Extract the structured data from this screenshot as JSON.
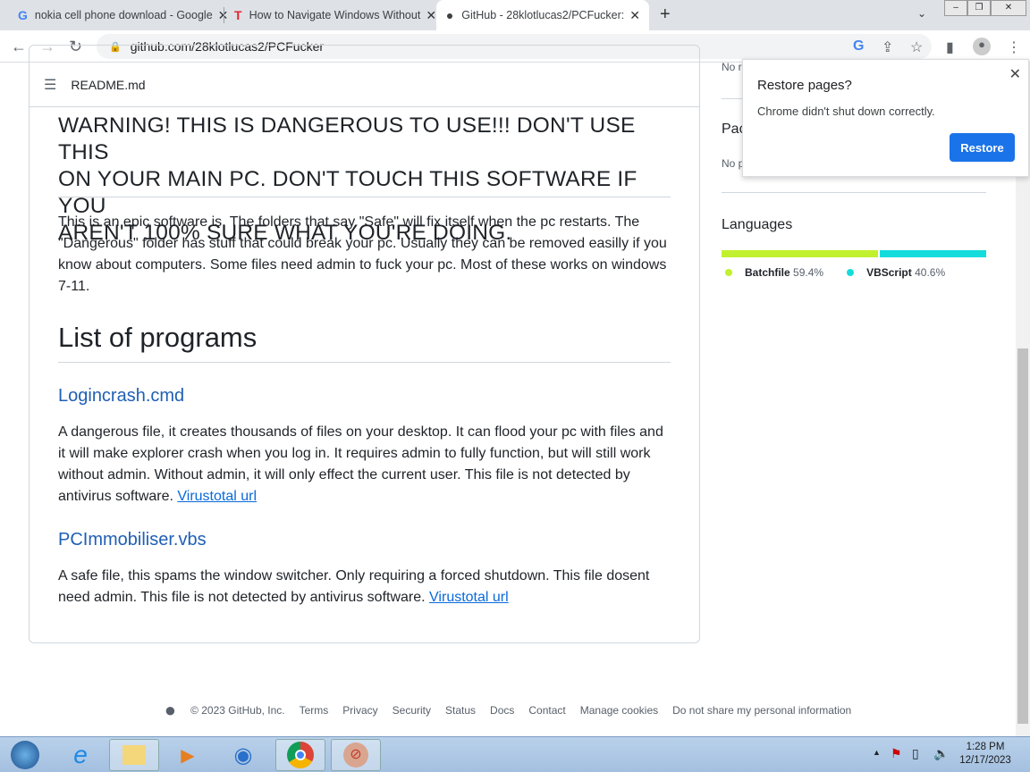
{
  "browser": {
    "tabs": [
      {
        "title": "nokia cell phone download - Google",
        "icon": "google-icon"
      },
      {
        "title": "How to Navigate Windows Without",
        "icon": "t-icon"
      },
      {
        "title": "GitHub - 28klotlucas2/PCFucker:",
        "icon": "github-icon"
      }
    ],
    "url": "github.com/28klotlucas2/PCFucker"
  },
  "readme": {
    "filename": "README.md",
    "warning": [
      "WARNING! THIS IS DANGEROUS TO USE!!! DON'T USE THIS",
      "ON YOUR MAIN PC. DON'T TOUCH THIS SOFTWARE IF YOU",
      "AREN'T 100% SURE WHAT YOU'RE DOING."
    ],
    "intro": "This is an epic software is. The folders that say \"Safe\" will fix itself when the pc restarts. The \"Dangerous\" folder has stuff that could break your pc. Usually they can be removed easilly if you know about computers. Some files need admin to fuck your pc. Most of these works on windows 7-11.",
    "list_title": "List of programs",
    "programs": [
      {
        "name": "Logincrash.cmd",
        "desc": "A dangerous file, it creates thousands of files on your desktop. It can flood your pc with files and it will make explorer crash when you log in. It requires admin to fully function, but will still work without admin. Without admin, it will only effect the current user. This file is not detected by antivirus software.",
        "link": "Virustotal url"
      },
      {
        "name": "PCImmobiliser.vbs",
        "desc": "A safe file, this spams the window switcher. Only requiring a forced shutdown. This file dosent need admin. This file is not detected by antivirus software.",
        "link": "Virustotal url"
      }
    ]
  },
  "sidebar": {
    "no_r": "No r",
    "packages_partial": "Pac",
    "no_p": "No p",
    "languages_title": "Languages",
    "languages": [
      {
        "name": "Batchfile",
        "pct": "59.4%",
        "value": 59.4,
        "color": "#c1f12e"
      },
      {
        "name": "VBScript",
        "pct": "40.6%",
        "value": 40.6,
        "color": "#15dcdc"
      }
    ]
  },
  "popup": {
    "title": "Restore pages?",
    "message": "Chrome didn't shut down correctly.",
    "button": "Restore"
  },
  "footer": {
    "copyright": "© 2023 GitHub, Inc.",
    "links": [
      "Terms",
      "Privacy",
      "Security",
      "Status",
      "Docs",
      "Contact",
      "Manage cookies",
      "Do not share my personal information"
    ]
  },
  "taskbar": {
    "time": "1:28 PM",
    "date": "12/17/2023"
  }
}
